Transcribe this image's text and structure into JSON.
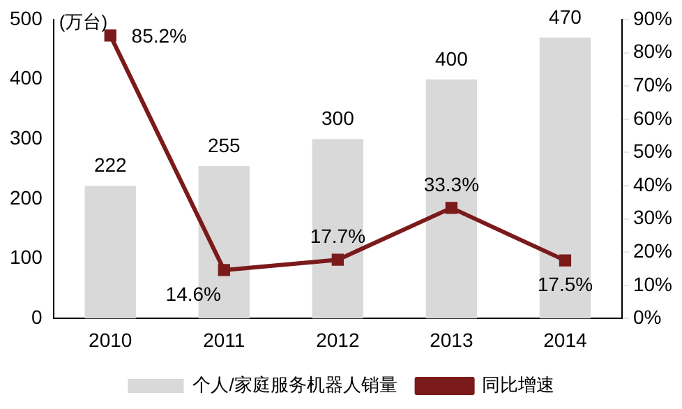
{
  "chart_data": {
    "type": "bar",
    "ylabel": "(万台)",
    "categories": [
      "2010",
      "2011",
      "2012",
      "2013",
      "2014"
    ],
    "series": [
      {
        "name": "个人/家庭服务机器人销量",
        "color": "#d9d9d9",
        "values": [
          222,
          255,
          300,
          400,
          470
        ],
        "value_labels": [
          "222",
          "255",
          "300",
          "400",
          "470"
        ]
      },
      {
        "name": "同比增速",
        "type": "line",
        "axis": "y2",
        "color": "#7b1a1a",
        "marker": "square",
        "values": [
          85.2,
          14.6,
          17.7,
          33.3,
          17.5
        ],
        "value_labels": [
          "85.2%",
          "14.6%",
          "17.7%",
          "33.3%",
          "17.5%"
        ]
      }
    ],
    "ylim": [
      0,
      500
    ],
    "yticks": [
      0,
      100,
      200,
      300,
      400,
      500
    ],
    "y2lim": [
      0,
      90
    ],
    "y2ticks": [
      {
        "value": 0,
        "label": "0%"
      },
      {
        "value": 10,
        "label": "10%"
      },
      {
        "value": 20,
        "label": "20%"
      },
      {
        "value": 30,
        "label": "30%"
      },
      {
        "value": 40,
        "label": "40%"
      },
      {
        "value": 50,
        "label": "50%"
      },
      {
        "value": 60,
        "label": "60%"
      },
      {
        "value": 70,
        "label": "70%"
      },
      {
        "value": 80,
        "label": "80%"
      },
      {
        "value": 90,
        "label": "90%"
      }
    ],
    "legend": "bottom"
  }
}
